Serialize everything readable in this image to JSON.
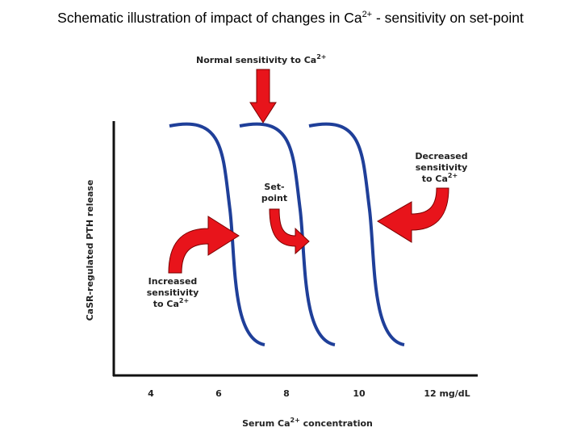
{
  "title": {
    "main": "Schematic illustration of impact of changes in Ca",
    "superscript": "2+",
    "rest": " - sensitivity on set-point"
  },
  "colors": {
    "curve": "#1f3f99",
    "arrow": "#e8141b",
    "axis": "#111111"
  },
  "annotations": {
    "normal": {
      "line1": "Normal sensitivity to Ca",
      "sup": "2+"
    },
    "setpoint": {
      "line1": "Set-",
      "line2": "point"
    },
    "decreased": {
      "line1": "Decreased",
      "line2": "sensitivity",
      "line3": "to Ca",
      "sup": "2+"
    },
    "increased": {
      "line1": "Increased",
      "line2": "sensitivity",
      "line3": "to Ca",
      "sup": "2+"
    }
  },
  "axes": {
    "ylabel": "CaSR-regulated PTH release",
    "xlabel_pre": "Serum Ca",
    "xlabel_sup": "2+",
    "xlabel_post": " concentration",
    "xticks": [
      "4",
      "6",
      "8",
      "10",
      "12 mg/dL"
    ]
  }
}
